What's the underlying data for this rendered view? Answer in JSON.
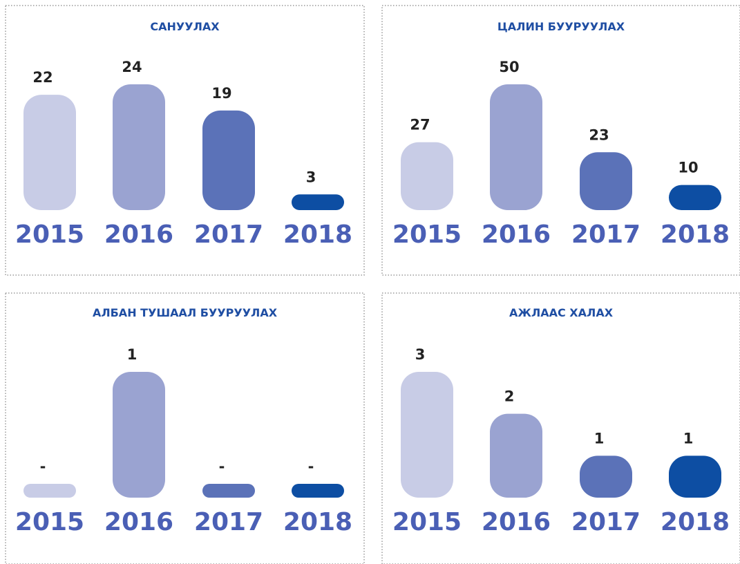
{
  "chart_data": [
    {
      "type": "bar",
      "title": "САНУУЛАХ",
      "categories": [
        "2015",
        "2016",
        "2017",
        "2018"
      ],
      "values": [
        22,
        24,
        19,
        3
      ],
      "colors": [
        "#c8cce6",
        "#9aa3d1",
        "#5b72b8",
        "#0d4ea3"
      ]
    },
    {
      "type": "bar",
      "title": "ЦАЛИН БУУРУУЛАХ",
      "categories": [
        "2015",
        "2016",
        "2017",
        "2018"
      ],
      "values": [
        27,
        50,
        23,
        10
      ],
      "colors": [
        "#c8cce6",
        "#9aa3d1",
        "#5b72b8",
        "#0d4ea3"
      ]
    },
    {
      "type": "bar",
      "title": "АЛБАН ТУШААЛ БУУРУУЛАХ",
      "categories": [
        "2015",
        "2016",
        "2017",
        "2018"
      ],
      "values": [
        0,
        1,
        0,
        0
      ],
      "value_labels": [
        "-",
        "1",
        "-",
        "-"
      ],
      "colors": [
        "#c8cce6",
        "#9aa3d1",
        "#5b72b8",
        "#0d4ea3"
      ]
    },
    {
      "type": "bar",
      "title": "АЖЛААС ХАЛАХ",
      "categories": [
        "2015",
        "2016",
        "2017",
        "2018"
      ],
      "values": [
        3,
        2,
        1,
        1
      ],
      "colors": [
        "#c8cce6",
        "#9aa3d1",
        "#5b72b8",
        "#0d4ea3"
      ]
    }
  ]
}
